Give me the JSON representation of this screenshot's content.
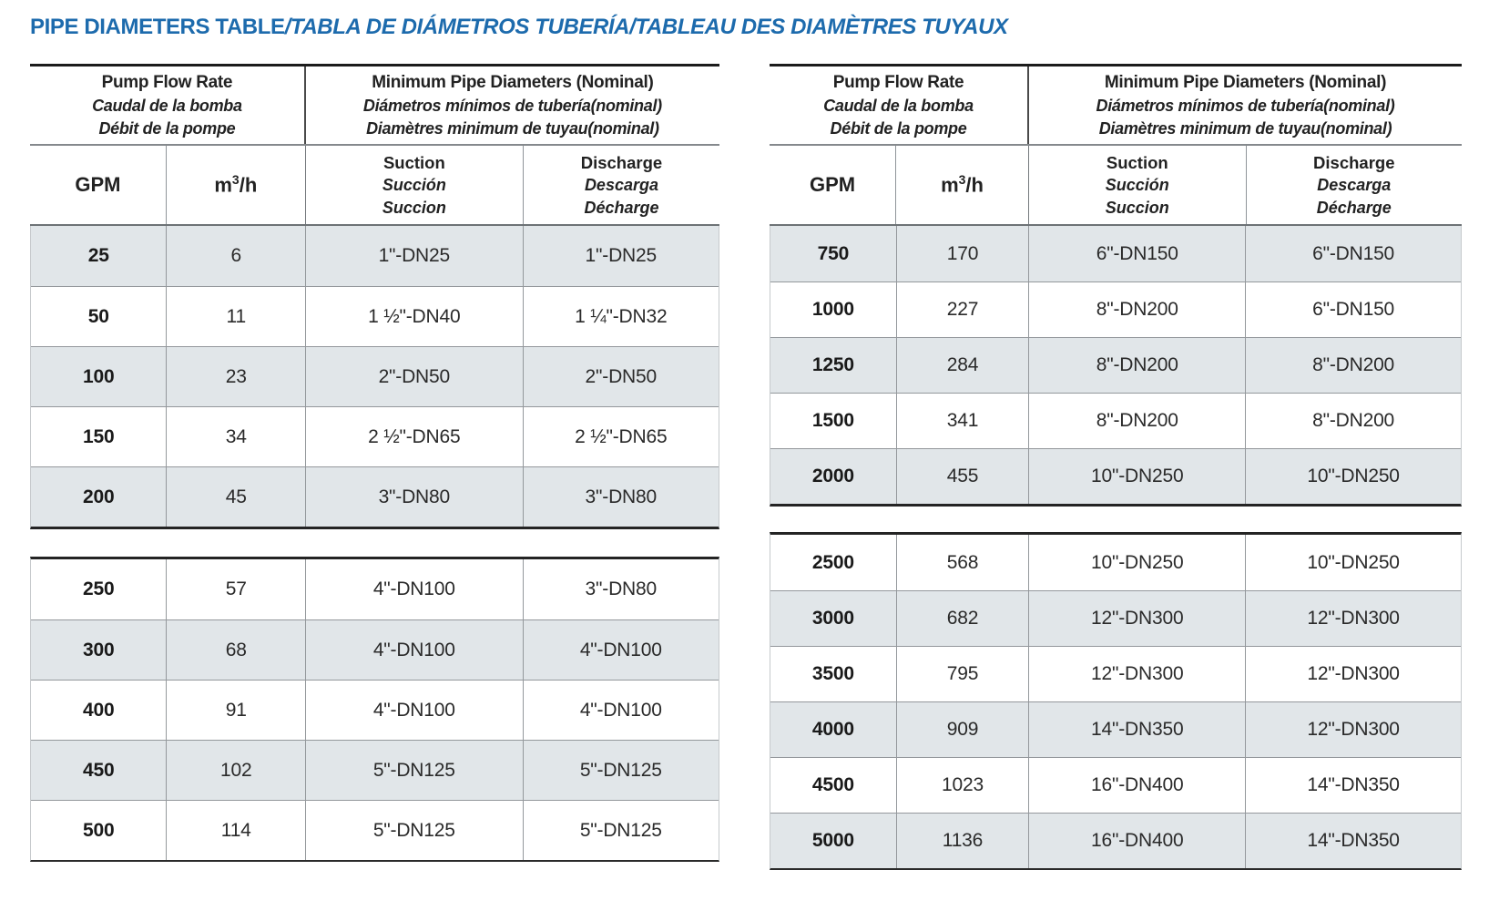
{
  "title": {
    "main": "PIPE DIAMETERS TABLE",
    "rest": "/TABLA DE DIÁMETROS TUBERÍA/TABLEAU DES DIAMÈTRES TUYAUX"
  },
  "header": {
    "flow": {
      "en": "Pump Flow Rate",
      "es": "Caudal de la bomba",
      "fr": "Débit de la pompe"
    },
    "diameters": {
      "en": "Minimum Pipe Diameters (Nominal)",
      "es": "Diámetros mínimos de tubería(nominal)",
      "fr": "Diamètres minimum de tuyau(nominal)"
    },
    "col_gpm": "GPM",
    "col_m3h": {
      "base": "m",
      "sup": "3",
      "rest": "/h"
    },
    "col_suction": {
      "en": "Suction",
      "es": "Succión",
      "fr": "Succion"
    },
    "col_discharge": {
      "en": "Discharge",
      "es": "Descarga",
      "fr": "Décharge"
    }
  },
  "left_table": {
    "sections": [
      {
        "rows": [
          {
            "gpm": "25",
            "m3h": "6",
            "suction": "1\"-DN25",
            "discharge": "1\"-DN25",
            "shaded": true
          },
          {
            "gpm": "50",
            "m3h": "11",
            "suction": "1 ½\"-DN40",
            "discharge": "1 ¼\"-DN32",
            "shaded": false
          },
          {
            "gpm": "100",
            "m3h": "23",
            "suction": "2\"-DN50",
            "discharge": "2\"-DN50",
            "shaded": true
          },
          {
            "gpm": "150",
            "m3h": "34",
            "suction": "2 ½\"-DN65",
            "discharge": "2 ½\"-DN65",
            "shaded": false
          },
          {
            "gpm": "200",
            "m3h": "45",
            "suction": "3\"-DN80",
            "discharge": "3\"-DN80",
            "shaded": true
          }
        ]
      },
      {
        "rows": [
          {
            "gpm": "250",
            "m3h": "57",
            "suction": "4\"-DN100",
            "discharge": "3\"-DN80",
            "shaded": false
          },
          {
            "gpm": "300",
            "m3h": "68",
            "suction": "4\"-DN100",
            "discharge": "4\"-DN100",
            "shaded": true
          },
          {
            "gpm": "400",
            "m3h": "91",
            "suction": "4\"-DN100",
            "discharge": "4\"-DN100",
            "shaded": false
          },
          {
            "gpm": "450",
            "m3h": "102",
            "suction": "5\"-DN125",
            "discharge": "5\"-DN125",
            "shaded": true
          },
          {
            "gpm": "500",
            "m3h": "114",
            "suction": "5\"-DN125",
            "discharge": "5\"-DN125",
            "shaded": false
          }
        ]
      }
    ]
  },
  "right_table": {
    "sections": [
      {
        "rows": [
          {
            "gpm": "750",
            "m3h": "170",
            "suction": "6\"-DN150",
            "discharge": "6\"-DN150",
            "shaded": true
          },
          {
            "gpm": "1000",
            "m3h": "227",
            "suction": "8\"-DN200",
            "discharge": "6\"-DN150",
            "shaded": false
          },
          {
            "gpm": "1250",
            "m3h": "284",
            "suction": "8\"-DN200",
            "discharge": "8\"-DN200",
            "shaded": true
          },
          {
            "gpm": "1500",
            "m3h": "341",
            "suction": "8\"-DN200",
            "discharge": "8\"-DN200",
            "shaded": false
          },
          {
            "gpm": "2000",
            "m3h": "455",
            "suction": "10\"-DN250",
            "discharge": "10\"-DN250",
            "shaded": true
          }
        ]
      },
      {
        "rows": [
          {
            "gpm": "2500",
            "m3h": "568",
            "suction": "10\"-DN250",
            "discharge": "10\"-DN250",
            "shaded": false
          },
          {
            "gpm": "3000",
            "m3h": "682",
            "suction": "12\"-DN300",
            "discharge": "12\"-DN300",
            "shaded": true
          },
          {
            "gpm": "3500",
            "m3h": "795",
            "suction": "12\"-DN300",
            "discharge": "12\"-DN300",
            "shaded": false
          },
          {
            "gpm": "4000",
            "m3h": "909",
            "suction": "14\"-DN350",
            "discharge": "12\"-DN300",
            "shaded": true
          },
          {
            "gpm": "4500",
            "m3h": "1023",
            "suction": "16\"-DN400",
            "discharge": "14\"-DN350",
            "shaded": false
          },
          {
            "gpm": "5000",
            "m3h": "1136",
            "suction": "16\"-DN400",
            "discharge": "14\"-DN350",
            "shaded": true
          }
        ]
      }
    ]
  },
  "colors": {
    "title_blue": "#1d6bad",
    "row_shade": "#e1e6e9",
    "rule_dark": "#242424",
    "rule_gray": "#94989c"
  }
}
